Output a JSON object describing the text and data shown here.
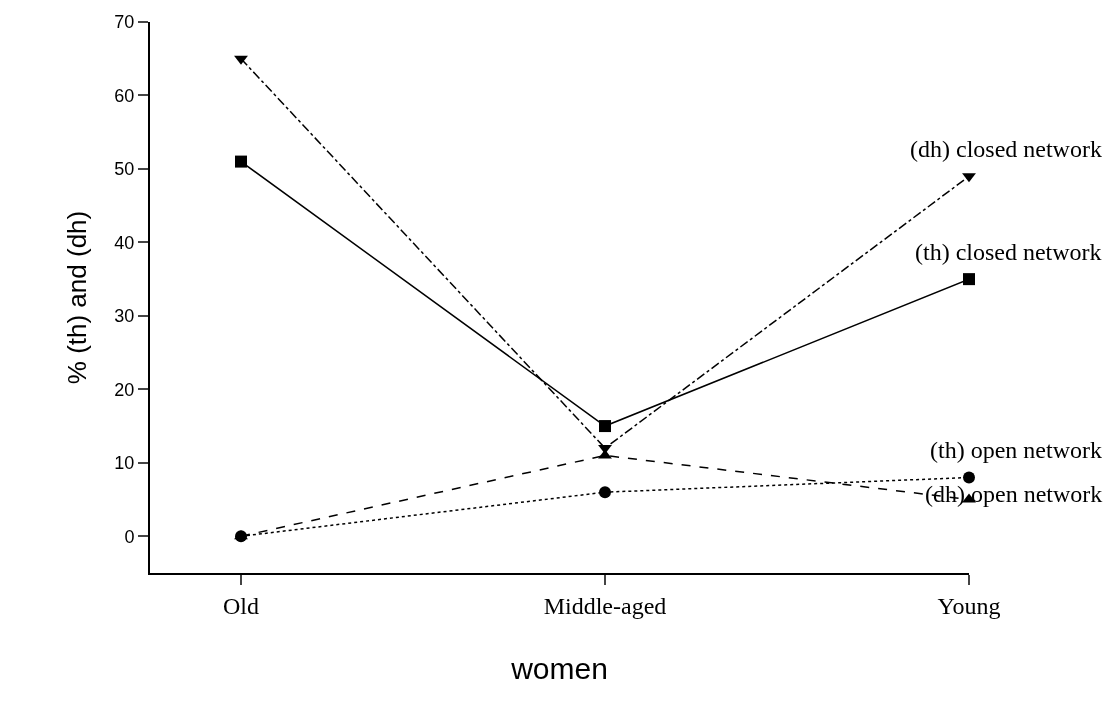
{
  "chart_data": {
    "type": "line",
    "xlabel": "women",
    "ylabel": "% (th) and (dh)",
    "categories": [
      "Old",
      "Middle-aged",
      "Young"
    ],
    "ylim": [
      -5,
      70
    ],
    "yticks": [
      0,
      10,
      20,
      30,
      40,
      50,
      60,
      70
    ],
    "legend": false,
    "series": [
      {
        "name": "(dh) closed network",
        "color": "#000000",
        "values": [
          65,
          12,
          49
        ],
        "marker": "triangle-down",
        "line_style": "dashdot"
      },
      {
        "name": "(th) closed network",
        "color": "#000000",
        "values": [
          51,
          15,
          35
        ],
        "marker": "square",
        "line_style": "solid"
      },
      {
        "name": "(dh) open network",
        "color": "#000000",
        "values": [
          0,
          11,
          5
        ],
        "marker": "triangle",
        "line_style": "dashed"
      },
      {
        "name": "(th) open network",
        "color": "#000000",
        "values": [
          0,
          6,
          8
        ],
        "marker": "circle",
        "line_style": "dotted"
      }
    ]
  }
}
